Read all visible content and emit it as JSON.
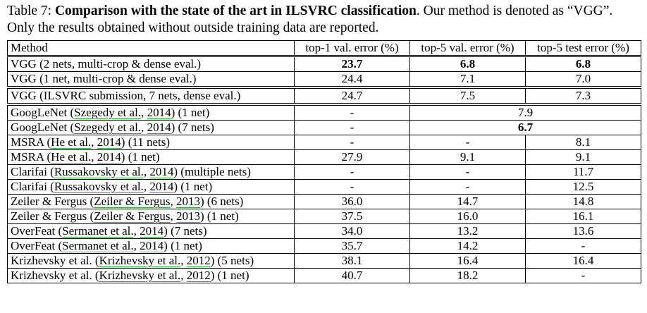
{
  "caption": {
    "label": "Table 7:",
    "title": "Comparison with the state of the art in ILSVRC classification",
    "text": ". Our method is denoted as “VGG”. Only the results obtained without outside training data are reported."
  },
  "table": {
    "header": [
      "Method",
      "top-1 val. error (%)",
      "top-5 val. error (%)",
      "top-5 test error (%)"
    ],
    "rows": [
      {
        "method": [
          "VGG (2 nets, multi-crop & dense eval.)"
        ],
        "values": [
          "23.7",
          "6.8",
          "6.8"
        ],
        "bold": true
      },
      {
        "method": [
          "VGG (1 net, multi-crop & dense eval.)"
        ],
        "values": [
          "24.4",
          "7.1",
          "7.0"
        ]
      },
      {
        "method": [
          "VGG (ILSVRC submission, 7 nets, dense eval.)"
        ],
        "values": [
          "24.7",
          "7.5",
          "7.3"
        ],
        "separated": true
      },
      {
        "method": [
          "GoogLeNet (",
          "Szegedy et al.",
          ", ",
          "2014",
          ") (1 net)"
        ],
        "values": [
          "-",
          "7.9"
        ],
        "separated": true
      },
      {
        "method": [
          "GoogLeNet (",
          "Szegedy et al.",
          ", ",
          "2014",
          ") (7 nets)"
        ],
        "values": [
          "-",
          "6.7"
        ],
        "bold": true
      },
      {
        "method": [
          "MSRA (",
          "He et al.",
          ", ",
          "2014",
          ") (11 nets)"
        ],
        "values": [
          "-",
          "-",
          "8.1"
        ]
      },
      {
        "method": [
          "MSRA (",
          "He et al.",
          ", ",
          "2014",
          ") (1 net)"
        ],
        "values": [
          "27.9",
          "9.1",
          "9.1"
        ]
      },
      {
        "method": [
          "Clarifai (",
          "Russakovsky et al.",
          ", ",
          "2014",
          ") (multiple nets)"
        ],
        "values": [
          "-",
          "-",
          "11.7"
        ]
      },
      {
        "method": [
          "Clarifai (",
          "Russakovsky et al.",
          ", ",
          "2014",
          ") (1 net)"
        ],
        "values": [
          "-",
          "-",
          "12.5"
        ]
      },
      {
        "method": [
          "Zeiler & Fergus (",
          "Zeiler & Fergus",
          ", ",
          "2013",
          ") (6 nets)"
        ],
        "values": [
          "36.0",
          "14.7",
          "14.8"
        ]
      },
      {
        "method": [
          "Zeiler & Fergus (",
          "Zeiler & Fergus",
          ", ",
          "2013",
          ") (1 net)"
        ],
        "values": [
          "37.5",
          "16.0",
          "16.1"
        ]
      },
      {
        "method": [
          "OverFeat (",
          "Sermanet et al.",
          ", ",
          "2014",
          ") (7 nets)"
        ],
        "values": [
          "34.0",
          "13.2",
          "13.6"
        ]
      },
      {
        "method": [
          "OverFeat (",
          "Sermanet et al.",
          ", ",
          "2014",
          ") (1 net)"
        ],
        "values": [
          "35.7",
          "14.2",
          "-"
        ]
      },
      {
        "method": [
          "Krizhevsky et al. (",
          "Krizhevsky et al.",
          ", ",
          "2012",
          ") (5 nets)"
        ],
        "values": [
          "38.1",
          "16.4",
          "16.4"
        ]
      },
      {
        "method": [
          "Krizhevsky et al. (",
          "Krizhevsky et al.",
          ", ",
          "2012",
          ") (1 net)"
        ],
        "values": [
          "40.7",
          "18.2",
          "-"
        ]
      }
    ]
  }
}
